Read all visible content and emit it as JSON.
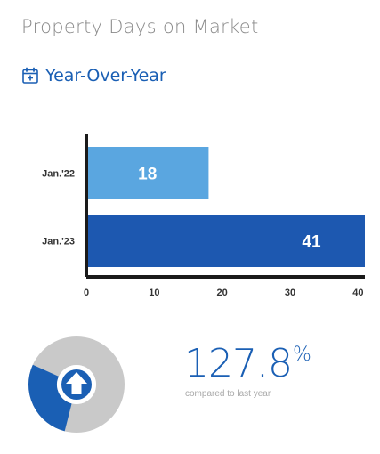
{
  "header": {
    "title": "Property Days on Market",
    "subtitle": "Year-Over-Year",
    "subtitle_icon": "calendar-plus-icon"
  },
  "chart_data": {
    "type": "bar",
    "orientation": "horizontal",
    "categories": [
      "Jan.'22",
      "Jan.'23"
    ],
    "values": [
      18,
      41
    ],
    "xlim": [
      0,
      41
    ],
    "xticks": [
      0,
      10,
      20,
      30,
      40
    ],
    "grid": false,
    "data_labels": true,
    "colors": [
      "#5aa6e0",
      "#1d58b0"
    ],
    "title": "",
    "xlabel": "",
    "ylabel": ""
  },
  "summary": {
    "change_value": "127.8",
    "change_unit": "%",
    "change_label": "compared to last year",
    "direction_icon": "arrow-up-icon",
    "donut_fraction": 0.278,
    "donut_colors": {
      "fill": "#1a5fb4",
      "track": "#c9c9c9"
    }
  }
}
